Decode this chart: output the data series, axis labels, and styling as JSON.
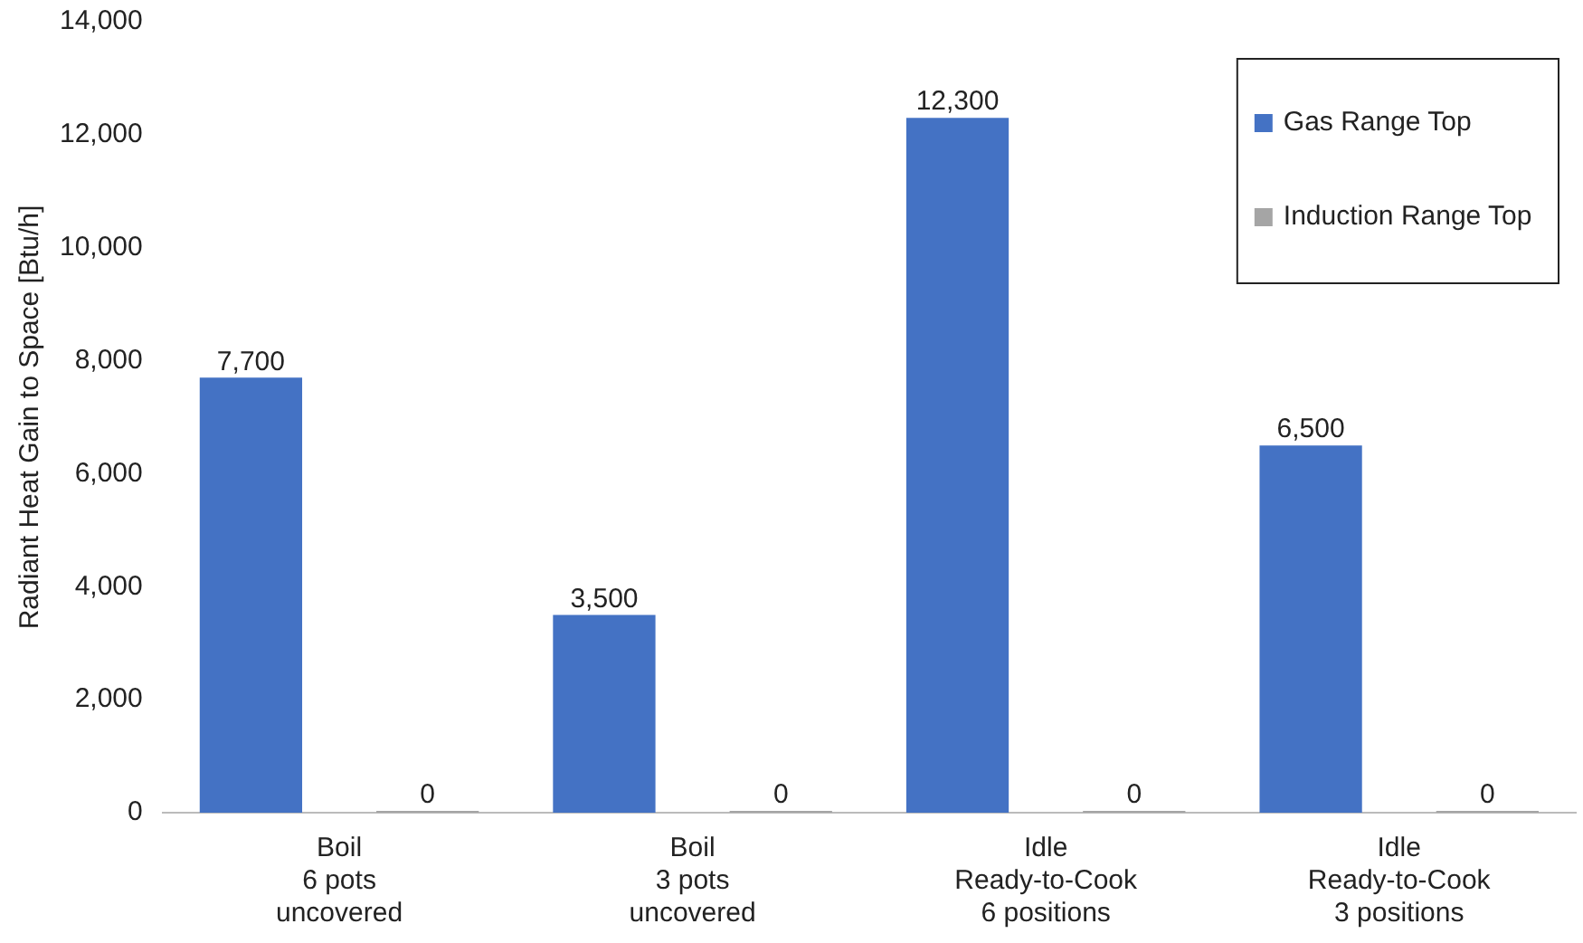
{
  "chart_data": {
    "type": "bar",
    "ylabel": "Radiant Heat Gain to Space [Btu/h]",
    "categories": [
      "Boil\n6 pots\nuncovered",
      "Boil\n3 pots\nuncovered",
      "Idle\nReady-to-Cook\n6 positions",
      "Idle\nReady-to-Cook\n3 positions"
    ],
    "series": [
      {
        "name": "Gas Range Top",
        "color": "#4472c4",
        "values": [
          7700,
          3500,
          12300,
          6500
        ],
        "value_labels": [
          "7,700",
          "3,500",
          "12,300",
          "6,500"
        ]
      },
      {
        "name": "Induction Range Top",
        "color": "#a5a5a5",
        "values": [
          0,
          0,
          0,
          0
        ],
        "value_labels": [
          "0",
          "0",
          "0",
          "0"
        ]
      }
    ],
    "ylim": [
      0,
      14000
    ],
    "yticks": [
      {
        "value": 0,
        "label": "0"
      },
      {
        "value": 2000,
        "label": "2,000"
      },
      {
        "value": 4000,
        "label": "4,000"
      },
      {
        "value": 6000,
        "label": "6,000"
      },
      {
        "value": 8000,
        "label": "8,000"
      },
      {
        "value": 10000,
        "label": "10,000"
      },
      {
        "value": 12000,
        "label": "12,000"
      },
      {
        "value": 14000,
        "label": "14,000"
      }
    ],
    "grid": false,
    "legend": "top right"
  }
}
